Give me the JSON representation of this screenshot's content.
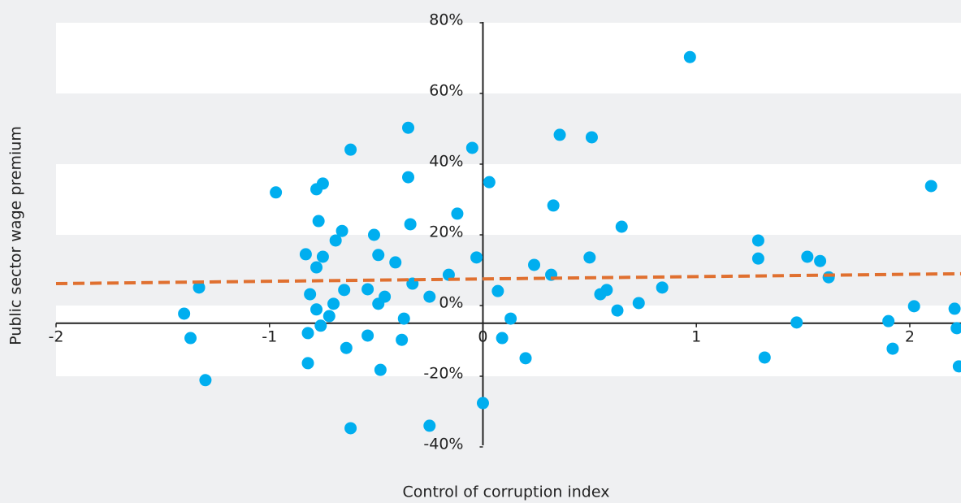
{
  "chart_data": {
    "type": "scatter",
    "x_label": "Control of corruption index",
    "y_label": "Public sector wage premium",
    "xlim": [
      -2,
      2.24
    ],
    "xticks": [
      -2,
      -1,
      0,
      1,
      2
    ],
    "ylim": [
      -40,
      80
    ],
    "yticks": [
      {
        "value": 80,
        "label": "80%"
      },
      {
        "value": 60,
        "label": "60%"
      },
      {
        "value": 40,
        "label": "40%"
      },
      {
        "value": 20,
        "label": "20%"
      },
      {
        "value": 0,
        "label": "0%"
      },
      {
        "value": -20,
        "label": "-20%"
      },
      {
        "value": -40,
        "label": "-40%"
      }
    ],
    "x_axis_crosses_at": -5,
    "alternating_bands": true,
    "series": [
      {
        "color": "#00aeef",
        "x": [
          -1.4,
          -1.37,
          -1.33,
          -1.3,
          -0.97,
          -0.78,
          -0.75,
          -0.77,
          -0.83,
          -0.75,
          -0.78,
          -0.69,
          -0.66,
          -0.81,
          -0.78,
          -0.72,
          -0.7,
          -0.76,
          -0.82,
          -0.82,
          -0.64,
          -0.62,
          -0.65,
          -0.51,
          -0.49,
          -0.54,
          -0.46,
          -0.49,
          -0.41,
          -0.35,
          -0.35,
          -0.34,
          -0.33,
          -0.37,
          -0.54,
          -0.38,
          -0.48,
          -0.62,
          -0.25,
          -0.25,
          -0.16,
          -0.12,
          -0.05,
          -0.03,
          0.03,
          0.07,
          0.09,
          0.13,
          0.2,
          0.0,
          0.24,
          0.32,
          0.33,
          0.36,
          0.5,
          0.51,
          0.55,
          0.58,
          0.63,
          0.65,
          0.73,
          0.84,
          0.97,
          1.29,
          1.29,
          1.32,
          1.47,
          1.52,
          1.58,
          1.62,
          1.9,
          1.92,
          2.02,
          2.1,
          2.21,
          2.22,
          2.23
        ],
        "values": [
          -2.3,
          -9.2,
          5.1,
          -21.1,
          32.0,
          32.9,
          34.5,
          23.9,
          14.5,
          13.8,
          10.8,
          18.4,
          21.1,
          3.2,
          -1.1,
          -3.0,
          0.5,
          -5.7,
          -7.8,
          -16.3,
          -12.0,
          44.1,
          4.4,
          20.0,
          14.3,
          4.6,
          2.5,
          0.5,
          12.2,
          50.3,
          36.3,
          23.0,
          6.2,
          -3.7,
          -8.5,
          -9.7,
          -18.2,
          -34.7,
          -34.0,
          2.5,
          8.7,
          26.0,
          44.6,
          13.6,
          34.9,
          4.1,
          -9.2,
          -3.7,
          -14.9,
          -27.6,
          11.5,
          8.7,
          28.3,
          48.3,
          13.6,
          47.6,
          3.2,
          4.4,
          -1.4,
          22.3,
          0.7,
          5.1,
          70.3,
          18.4,
          13.3,
          -14.7,
          -4.8,
          13.8,
          12.6,
          8.0,
          -4.4,
          -12.2,
          -0.2,
          33.8,
          -0.9,
          -6.4,
          -17.2
        ]
      }
    ],
    "trendline": {
      "color": "#e07030",
      "x": [
        -2,
        2.24
      ],
      "values": [
        6.2,
        9.0
      ]
    }
  }
}
